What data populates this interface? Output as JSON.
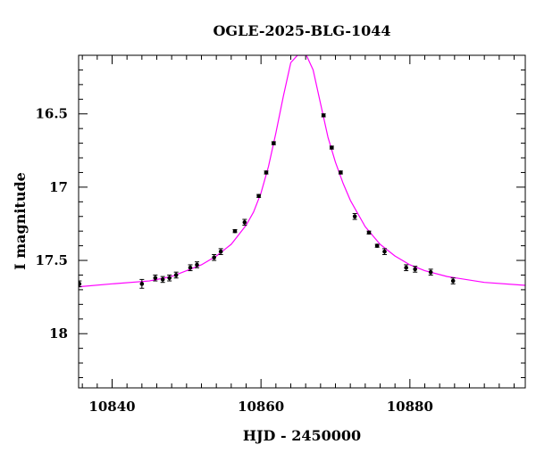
{
  "chart_data": {
    "type": "scatter",
    "title": "OGLE-2025-BLG-1044",
    "xlabel": "HJD - 2450000",
    "ylabel": "I magnitude",
    "xlim": [
      10835.5,
      10895.5
    ],
    "ylim": [
      18.37,
      16.1
    ],
    "y_inverted": true,
    "grid": false,
    "x_major_ticks": [
      10840,
      10860,
      10880
    ],
    "x_tick_labels": [
      "10840",
      "10860",
      "10880"
    ],
    "x_minor_step": 2,
    "y_major_ticks": [
      16.5,
      17,
      17.5,
      18
    ],
    "y_tick_labels": [
      "16.5",
      "17",
      "17.5",
      "18"
    ],
    "y_minor_step": 0.1,
    "colors": {
      "points": "#000000",
      "model": "#ff00ff",
      "axes": "#000000"
    },
    "series": [
      {
        "kind": "points_with_errorbars",
        "x": [
          10835.6,
          10844.0,
          10845.8,
          10846.8,
          10847.7,
          10848.6,
          10850.5,
          10851.4,
          10853.7,
          10854.6,
          10856.5,
          10857.8,
          10859.7,
          10860.7,
          10861.7,
          10868.4,
          10869.5,
          10870.7,
          10872.6,
          10874.5,
          10875.6,
          10876.6,
          10879.5,
          10880.7,
          10882.8,
          10885.8
        ],
        "y": [
          17.66,
          17.66,
          17.62,
          17.63,
          17.62,
          17.6,
          17.55,
          17.53,
          17.48,
          17.44,
          17.3,
          17.24,
          17.06,
          16.9,
          16.7,
          16.51,
          16.73,
          16.9,
          17.2,
          17.31,
          17.4,
          17.44,
          17.55,
          17.56,
          17.58,
          17.64
        ],
        "yerr": [
          0.02,
          0.03,
          0.02,
          0.02,
          0.02,
          0.02,
          0.02,
          0.02,
          0.02,
          0.02,
          0.01,
          0.02,
          0.01,
          0.01,
          0.01,
          0.01,
          0.01,
          0.01,
          0.02,
          0.01,
          0.01,
          0.02,
          0.02,
          0.02,
          0.02,
          0.02
        ]
      },
      {
        "kind": "model_curve",
        "x": [
          10835.5,
          10840,
          10845,
          10848,
          10850,
          10852,
          10854,
          10856,
          10858,
          10859,
          10860,
          10861,
          10862,
          10863,
          10864,
          10864.9,
          10866.1,
          10867,
          10868,
          10869,
          10870,
          10871,
          10872,
          10874,
          10876,
          10878,
          10880,
          10882,
          10885,
          10890,
          10895.5
        ],
        "y": [
          17.68,
          17.66,
          17.64,
          17.61,
          17.57,
          17.53,
          17.47,
          17.39,
          17.26,
          17.17,
          17.04,
          16.86,
          16.63,
          16.38,
          16.15,
          16.1,
          16.1,
          16.2,
          16.43,
          16.66,
          16.83,
          16.97,
          17.09,
          17.27,
          17.39,
          17.47,
          17.53,
          17.57,
          17.61,
          17.65,
          17.67
        ]
      }
    ]
  }
}
